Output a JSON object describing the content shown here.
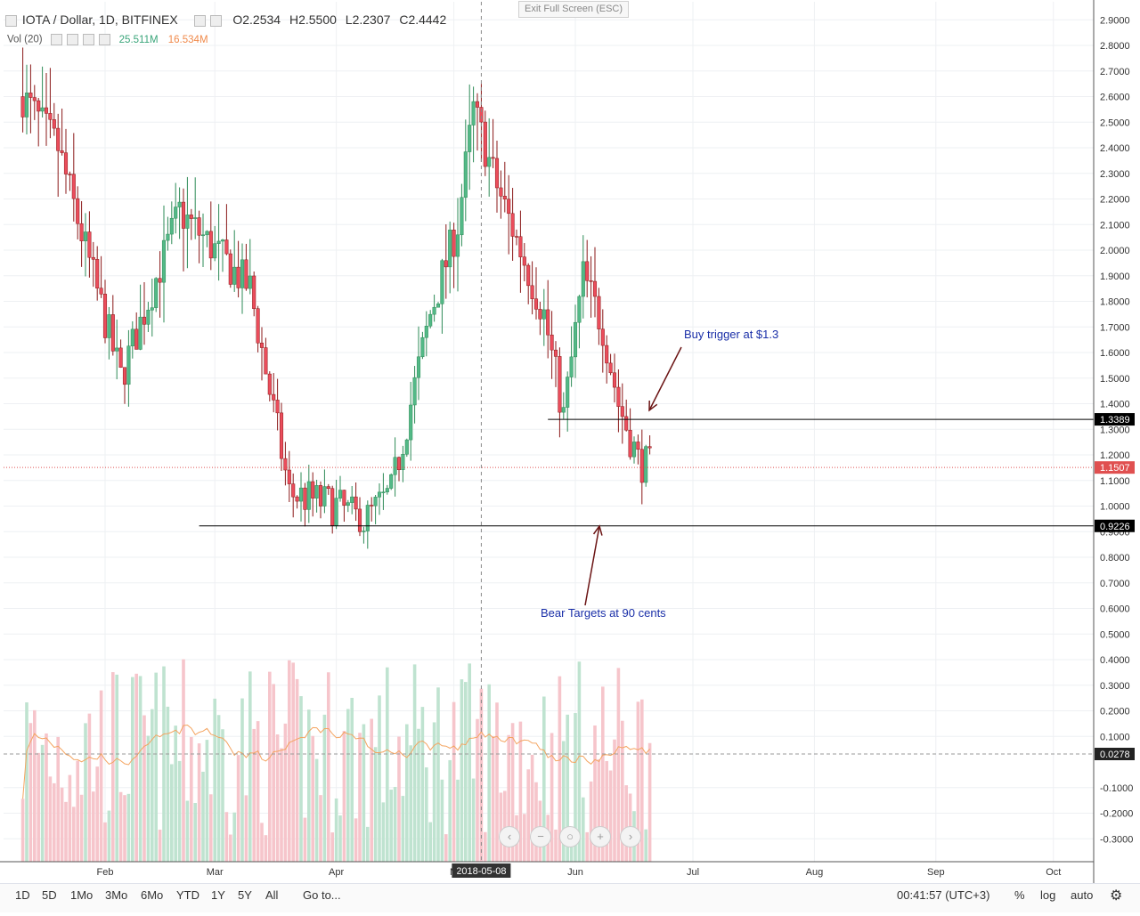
{
  "header": {
    "symbol": "IOTA / Dollar, 1D, BITFINEX",
    "open_label": "O",
    "open": "2.2534",
    "high_label": "H",
    "high": "2.5500",
    "low_label": "L",
    "low": "2.2307",
    "close_label": "C",
    "close": "2.4442",
    "exit_fullscreen": "Exit Full Screen (ESC)"
  },
  "volume_legend": {
    "label": "Vol (20)",
    "vol_value": "25.511M",
    "ma_value": "16.534M"
  },
  "annotations": {
    "buy_trigger": "Buy trigger at $1.3",
    "bear_targets": "Bear Targets at 90 cents"
  },
  "price_labels": {
    "upper_level": "1.3389",
    "last_price": "1.1507",
    "lower_level": "0.9226",
    "volume_ma": "0.0278"
  },
  "crosshair_date": "2018-05-08",
  "x_labels": [
    "Feb",
    "Mar",
    "Apr",
    "M",
    "Jun",
    "Jul",
    "Aug",
    "Sep",
    "Oct"
  ],
  "bottom_bar": {
    "timeframes": [
      "1D",
      "5D",
      "1Mo",
      "3Mo",
      "6Mo",
      "YTD",
      "1Y",
      "5Y",
      "All"
    ],
    "goto": "Go to...",
    "clock": "00:41:57 (UTC+3)",
    "percent": "%",
    "log": "log",
    "auto": "auto"
  },
  "colors": {
    "up": "#53b987",
    "down": "#eb4d5c",
    "vol_up": "#bfe3d0",
    "vol_down": "#f6c5cb",
    "ma": "#f4a460",
    "grid": "#eef0f3",
    "level_line": "#000000",
    "arrow": "#6b1414",
    "annotation_text": "#1a2fa8"
  },
  "chart_data": {
    "type": "candlestick",
    "title": "IOTA / Dollar, 1D, BITFINEX",
    "y_ticks": [
      2.9,
      2.8,
      2.7,
      2.6,
      2.5,
      2.4,
      2.3,
      2.2,
      2.1,
      2.0,
      1.9,
      1.8,
      1.7,
      1.6,
      1.5,
      1.4,
      1.3,
      1.2,
      1.1,
      1.0,
      0.9,
      0.8,
      0.7,
      0.6,
      0.5,
      0.4,
      0.3,
      0.2,
      0.1,
      -0.1,
      -0.2,
      -0.3
    ],
    "y_tick_labels": [
      "2.9000",
      "2.8000",
      "2.7000",
      "2.6000",
      "2.5000",
      "2.4000",
      "2.3000",
      "2.2000",
      "2.1000",
      "2.0000",
      "1.9000",
      "1.8000",
      "1.7000",
      "1.6000",
      "1.5000",
      "1.4000",
      "1.3000",
      "1.2000",
      "1.1000",
      "1.0000",
      "0.9000",
      "0.8000",
      "0.7000",
      "0.6000",
      "0.5000",
      "0.4000",
      "0.3000",
      "0.2000",
      "0.1000",
      "-0.1000",
      "-0.2000",
      "-0.3000"
    ],
    "ylim": [
      -0.35,
      2.98
    ],
    "x_range": [
      "2018-01-10",
      "2018-10-12"
    ],
    "month_ticks": [
      "2018-02-01",
      "2018-03-01",
      "2018-04-01",
      "2018-05-01",
      "2018-06-01",
      "2018-07-01",
      "2018-08-01",
      "2018-09-01",
      "2018-10-01"
    ],
    "levels": [
      {
        "value": 1.3389,
        "from": "2018-05-25",
        "to": "2018-10-12"
      },
      {
        "value": 0.9226,
        "from": "2018-02-25",
        "to": "2018-10-12"
      }
    ],
    "last_price": 1.1507,
    "volume_ma_value": 0.0278,
    "crosshair": "2018-05-08",
    "candle_anchors": [
      {
        "date": "2018-01-11",
        "close": 2.6
      },
      {
        "date": "2018-01-20",
        "close": 2.4
      },
      {
        "date": "2018-02-05",
        "close": 1.5
      },
      {
        "date": "2018-02-20",
        "close": 2.15
      },
      {
        "date": "2018-03-10",
        "close": 1.85
      },
      {
        "date": "2018-03-20",
        "close": 1.05
      },
      {
        "date": "2018-04-01",
        "close": 1.0
      },
      {
        "date": "2018-04-08",
        "close": 0.94
      },
      {
        "date": "2018-04-15",
        "close": 1.05
      },
      {
        "date": "2018-04-25",
        "close": 1.75
      },
      {
        "date": "2018-05-02",
        "close": 2.1
      },
      {
        "date": "2018-05-06",
        "close": 2.55
      },
      {
        "date": "2018-05-12",
        "close": 2.25
      },
      {
        "date": "2018-05-24",
        "close": 1.75
      },
      {
        "date": "2018-05-29",
        "close": 1.35
      },
      {
        "date": "2018-06-03",
        "close": 1.9
      },
      {
        "date": "2018-06-08",
        "close": 1.7
      },
      {
        "date": "2018-06-12",
        "close": 1.4
      },
      {
        "date": "2018-06-17",
        "close": 1.18
      },
      {
        "date": "2018-06-20",
        "close": 1.15
      }
    ]
  }
}
